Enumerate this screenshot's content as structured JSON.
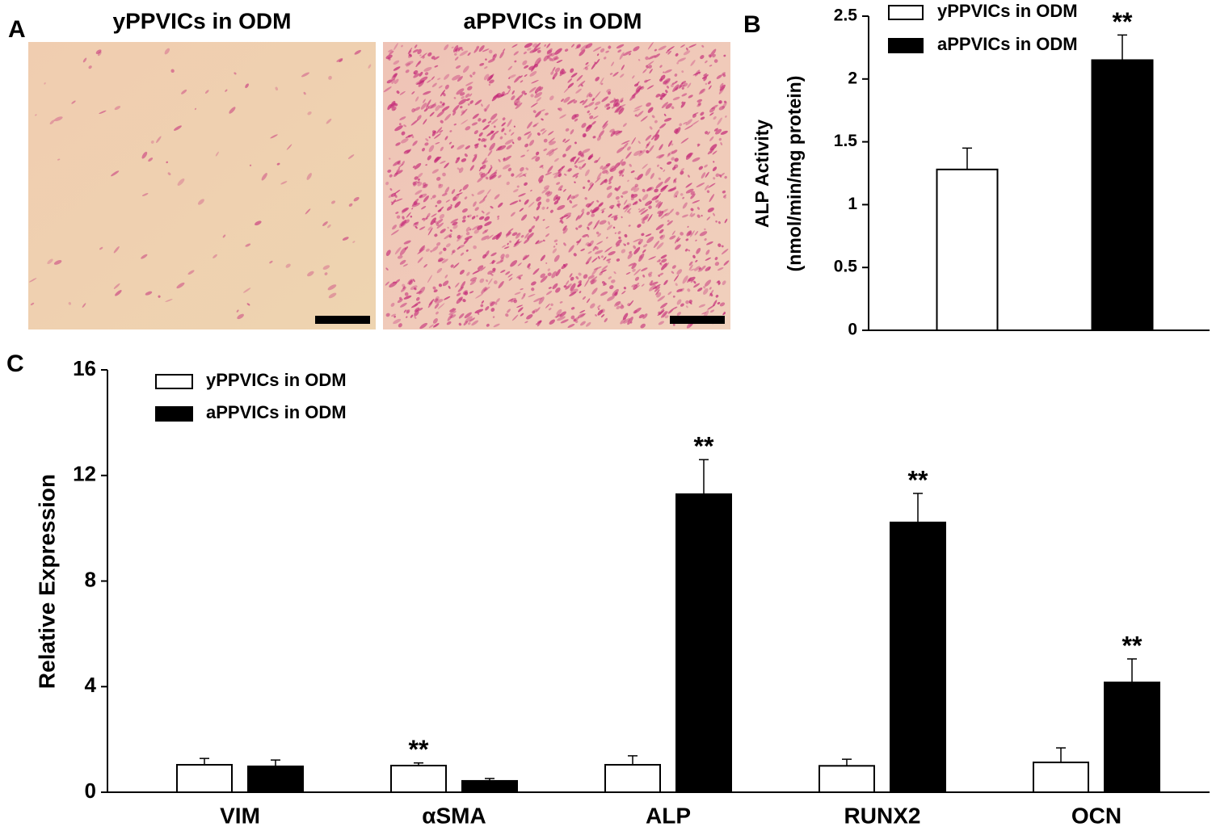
{
  "panel_labels": [
    "A",
    "B",
    "C"
  ],
  "images": [
    {
      "title": "yPPVICs in ODM"
    },
    {
      "title": "aPPVICs in ODM"
    }
  ],
  "chart_data": [
    {
      "type": "bar",
      "ylabel": [
        "ALP Activity",
        "(nmol/min/mg protein)"
      ],
      "categories": [
        null
      ],
      "series": [
        {
          "name": "yPPVICs in ODM",
          "color": "#ffffff",
          "values": [
            1.28
          ],
          "errors": [
            0.17
          ],
          "significance": [
            null
          ]
        },
        {
          "name": "aPPVICs in ODM",
          "color": "#000000",
          "values": [
            2.15
          ],
          "errors": [
            0.2
          ],
          "significance": [
            "**"
          ]
        }
      ],
      "ylim": [
        0,
        2.5
      ],
      "yticks": [
        0,
        0.5,
        1,
        1.5,
        2,
        2.5
      ]
    },
    {
      "type": "bar",
      "ylabel": [
        "Relative Expression"
      ],
      "categories": [
        "VIM",
        "αSMA",
        "ALP",
        "RUNX2",
        "OCN"
      ],
      "series": [
        {
          "name": "yPPVICs in ODM",
          "color": "#ffffff",
          "values": [
            1.04,
            1.01,
            1.04,
            1.0,
            1.13
          ],
          "errors": [
            0.24,
            0.1,
            0.34,
            0.25,
            0.55
          ],
          "significance": [
            null,
            "**",
            null,
            null,
            null
          ]
        },
        {
          "name": "aPPVICs in ODM",
          "color": "#000000",
          "values": [
            0.98,
            0.43,
            11.29,
            10.22,
            4.16
          ],
          "errors": [
            0.24,
            0.09,
            1.31,
            1.1,
            0.89
          ],
          "significance": [
            null,
            null,
            "**",
            "**",
            "**"
          ]
        }
      ],
      "ylim": [
        0,
        16
      ],
      "yticks": [
        0,
        4,
        8,
        12,
        16
      ]
    }
  ]
}
